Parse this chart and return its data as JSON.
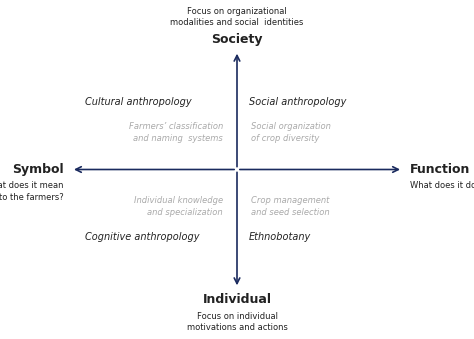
{
  "bg_color": "#ffffff",
  "arrow_color": "#1a2a5e",
  "figsize": [
    4.74,
    3.39
  ],
  "dpi": 100,
  "labels": {
    "society": "Society",
    "individual": "Individual",
    "symbol": "Symbol",
    "function": "Function"
  },
  "subtitles": {
    "society_sub": "Focus on organizational\nmodalities and social  identities",
    "individual_sub": "Focus on individual\nmotivations and actions",
    "symbol_sub": "What does it mean\nto the farmers?",
    "function_sub": "What does it do for the crop?"
  },
  "quadrant_labels": {
    "top_left": "Cultural anthropology",
    "top_right": "Social anthropology",
    "bottom_left": "Cognitive anthropology",
    "bottom_right": "Ethnobotany"
  },
  "quadrant_gray": {
    "top_left_gray": "Farmers’ classification\nand naming  systems",
    "top_right_gray": "Social organization\nof crop diversity",
    "bottom_left_gray": "Individual knowledge\nand specialization",
    "bottom_right_gray": "Crop management\nand seed selection"
  },
  "text_color_black": "#222222",
  "text_color_gray": "#aaaaaa",
  "label_bold_size": 9,
  "label_italic_size": 7,
  "sub_size": 6,
  "gray_italic_size": 6
}
